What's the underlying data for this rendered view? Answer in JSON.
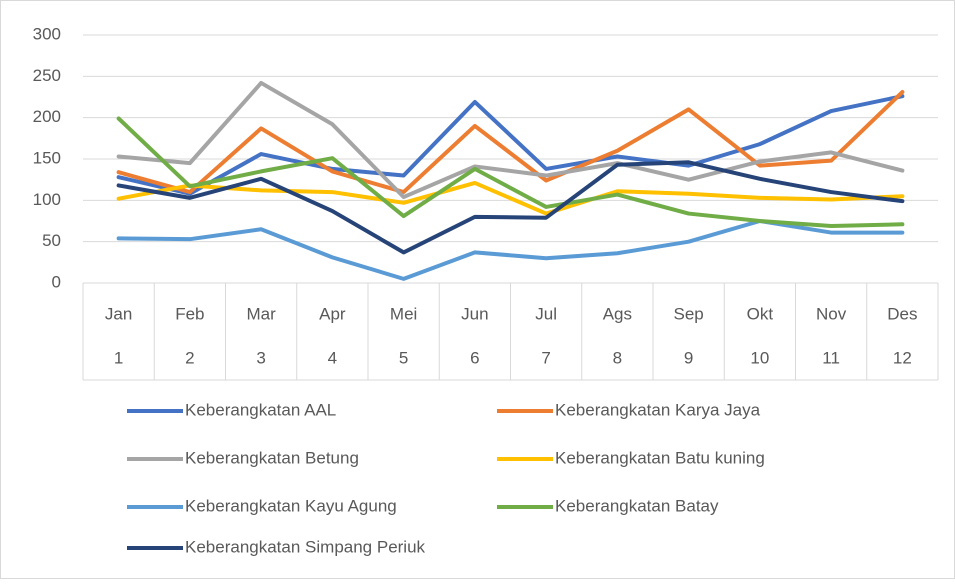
{
  "chart_data": {
    "type": "line",
    "categories": [
      "Jan",
      "Feb",
      "Mar",
      "Apr",
      "Mei",
      "Jun",
      "Jul",
      "Ags",
      "Sep",
      "Okt",
      "Nov",
      "Des"
    ],
    "category_numbers": [
      1,
      2,
      3,
      4,
      5,
      6,
      7,
      8,
      9,
      10,
      11,
      12
    ],
    "ylim": [
      0,
      300
    ],
    "yticks": [
      0,
      50,
      100,
      150,
      200,
      250,
      300
    ],
    "grid": true,
    "series": [
      {
        "name": "Keberangkatan AAL",
        "color": "#4472c4",
        "values": [
          128,
          108,
          156,
          138,
          130,
          219,
          138,
          153,
          142,
          168,
          208,
          226
        ]
      },
      {
        "name": "Keberangkatan Karya Jaya",
        "color": "#ed7d31",
        "values": [
          134,
          110,
          187,
          135,
          110,
          190,
          124,
          160,
          210,
          142,
          148,
          231
        ]
      },
      {
        "name": "Keberangkatan Betung",
        "color": "#a5a5a5",
        "values": [
          153,
          145,
          242,
          192,
          104,
          141,
          130,
          145,
          125,
          147,
          158,
          136
        ]
      },
      {
        "name": "Keberangkatan Batu kuning",
        "color": "#ffc000",
        "values": [
          102,
          118,
          112,
          110,
          97,
          121,
          84,
          111,
          108,
          103,
          101,
          105
        ]
      },
      {
        "name": "Keberangkatan Kayu Agung",
        "color": "#5b9bd5",
        "values": [
          54,
          53,
          65,
          31,
          5,
          37,
          30,
          36,
          50,
          75,
          61,
          61
        ]
      },
      {
        "name": "Keberangkatan Batay",
        "color": "#70ad47",
        "values": [
          199,
          117,
          135,
          151,
          81,
          138,
          92,
          107,
          84,
          75,
          69,
          71
        ]
      },
      {
        "name": "Keberangkatan Simpang Periuk",
        "color": "#264478",
        "values": [
          118,
          103,
          126,
          87,
          37,
          80,
          79,
          143,
          146,
          126,
          110,
          99
        ]
      }
    ]
  }
}
